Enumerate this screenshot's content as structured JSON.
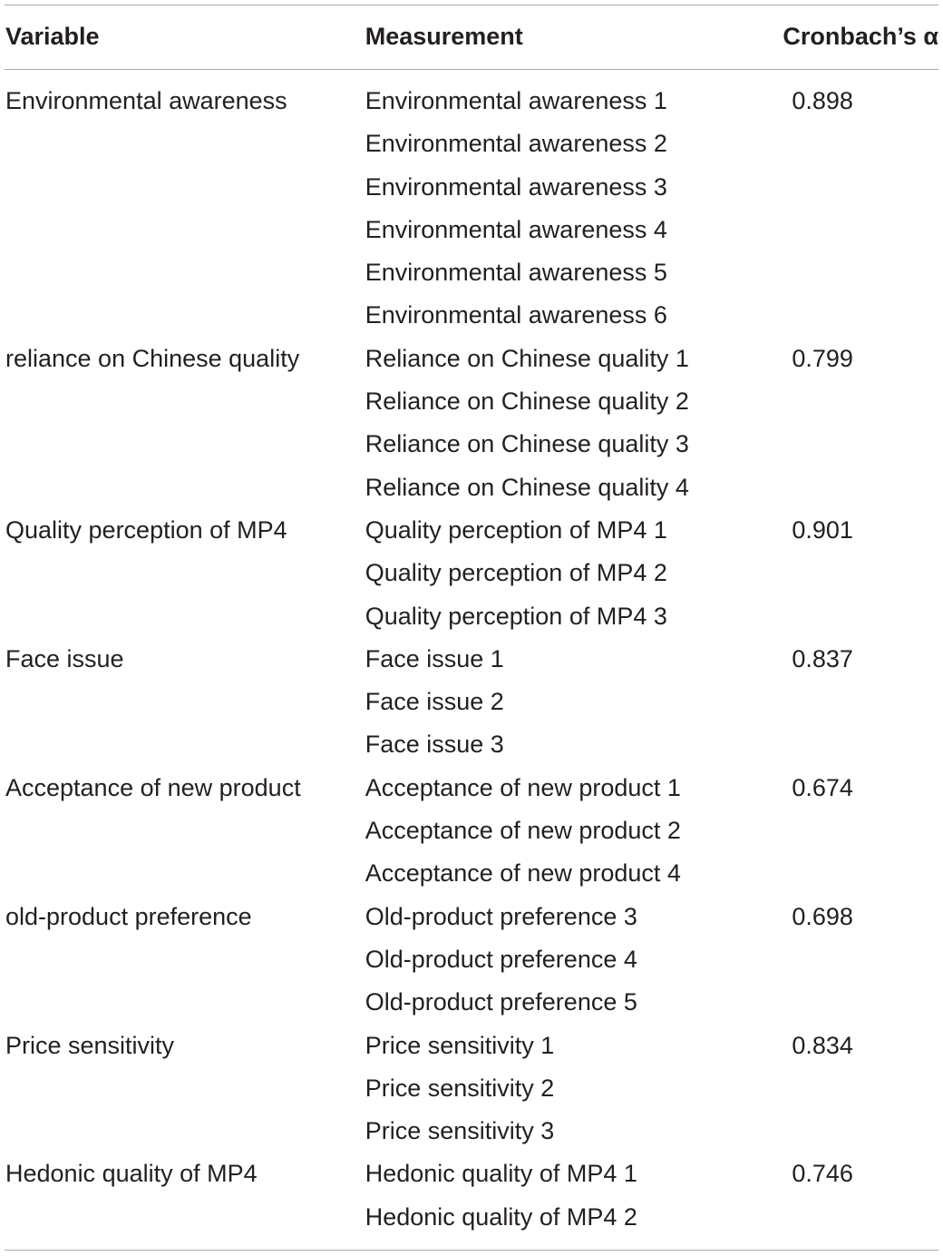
{
  "table": {
    "headers": [
      "Variable",
      "Measurement",
      "Cronbach’s α"
    ],
    "rows": [
      [
        "Environmental awareness",
        "Environmental awareness 1",
        "0.898"
      ],
      [
        "",
        "Environmental awareness 2",
        ""
      ],
      [
        "",
        "Environmental awareness 3",
        ""
      ],
      [
        "",
        "Environmental awareness 4",
        ""
      ],
      [
        "",
        "Environmental awareness 5",
        ""
      ],
      [
        "",
        "Environmental awareness 6",
        ""
      ],
      [
        "reliance on Chinese quality",
        "Reliance on Chinese quality 1",
        "0.799"
      ],
      [
        "",
        "Reliance on Chinese quality 2",
        ""
      ],
      [
        "",
        "Reliance on Chinese quality 3",
        ""
      ],
      [
        "",
        "Reliance on Chinese quality 4",
        ""
      ],
      [
        "Quality perception of MP4",
        "Quality perception of MP4 1",
        "0.901"
      ],
      [
        "",
        "Quality perception of MP4 2",
        ""
      ],
      [
        "",
        "Quality perception of MP4 3",
        ""
      ],
      [
        "Face issue",
        "Face issue 1",
        "0.837"
      ],
      [
        "",
        "Face issue 2",
        ""
      ],
      [
        "",
        "Face issue 3",
        ""
      ],
      [
        "Acceptance of new product",
        "Acceptance of new product 1",
        "0.674"
      ],
      [
        "",
        "Acceptance of new product 2",
        ""
      ],
      [
        "",
        "Acceptance of new product 4",
        ""
      ],
      [
        "old-product preference",
        "Old-product preference 3",
        "0.698"
      ],
      [
        "",
        "Old-product preference 4",
        ""
      ],
      [
        "",
        "Old-product preference 5",
        ""
      ],
      [
        "Price sensitivity",
        "Price sensitivity 1",
        "0.834"
      ],
      [
        "",
        "Price sensitivity 2",
        ""
      ],
      [
        "",
        "Price sensitivity 3",
        ""
      ],
      [
        "Hedonic quality of MP4",
        "Hedonic quality of MP4 1",
        "0.746"
      ],
      [
        "",
        "Hedonic quality of MP4 2",
        ""
      ]
    ]
  }
}
